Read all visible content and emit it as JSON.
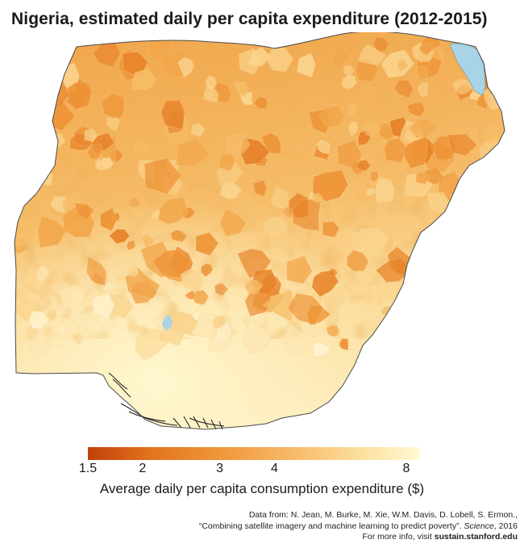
{
  "title": "Nigeria, estimated daily per capita expenditure (2012-2015)",
  "map": {
    "region": "Nigeria",
    "color_scale": [
      "#c2410a",
      "#e3761f",
      "#f19a3e",
      "#f8c070",
      "#fce2a4",
      "#fffad2"
    ],
    "water_color": "#a8d4e6",
    "border_color": "#555555"
  },
  "legend": {
    "title": "Average daily per capita consumption expenditure ($)",
    "ticks": [
      {
        "label": "1.5",
        "value": 1.5
      },
      {
        "label": "2",
        "value": 2
      },
      {
        "label": "3",
        "value": 3
      },
      {
        "label": "4",
        "value": 4
      },
      {
        "label": "8",
        "value": 8
      }
    ]
  },
  "credits": {
    "line1": "Data from: N. Jean, M. Burke, M. Xie, W.M. Davis, D. Lobell, S. Ermon.,",
    "line2_prefix": "“Combining satellite imagery and machine learning to predict poverty”.",
    "line2_journal": "Science",
    "line2_suffix": ", 2016",
    "line3_prefix": "For more info, visit ",
    "line3_link": "sustain.stanford.edu"
  }
}
